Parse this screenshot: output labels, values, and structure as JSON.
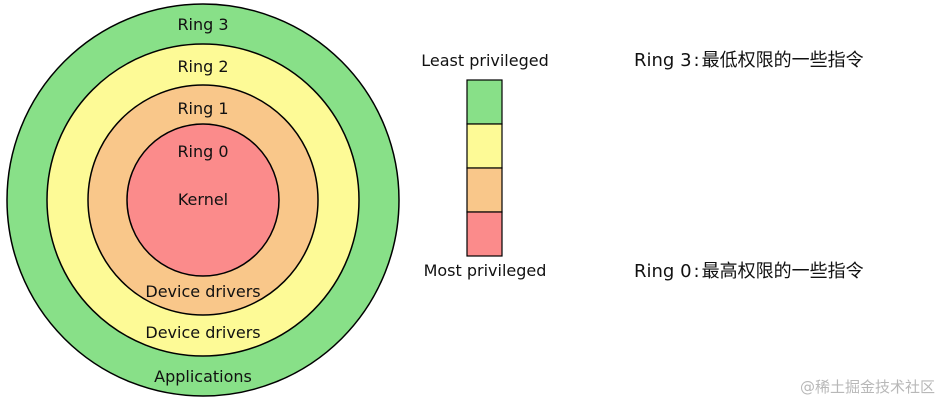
{
  "colors": {
    "ring3": "#88e088",
    "ring2": "#fdfa96",
    "ring1": "#f9c78a",
    "ring0": "#fb8b8b",
    "stroke": "#000000"
  },
  "rings": {
    "ring3": {
      "name": "Ring 3",
      "content": "Applications"
    },
    "ring2": {
      "name": "Ring 2",
      "content": "Device drivers"
    },
    "ring1": {
      "name": "Ring 1",
      "content": "Device drivers"
    },
    "ring0": {
      "name": "Ring 0",
      "content": "Kernel"
    }
  },
  "scale": {
    "top_label": "Least privileged",
    "bottom_label": "Most privileged"
  },
  "notes": {
    "ring3": {
      "ring": "Ring 3",
      "sep": ":",
      "text": "最低权限的一些指令"
    },
    "ring0": {
      "ring": "Ring 0",
      "sep": ":",
      "text": "最高权限的一些指令"
    }
  },
  "watermark": "@稀土掘金技术社区"
}
